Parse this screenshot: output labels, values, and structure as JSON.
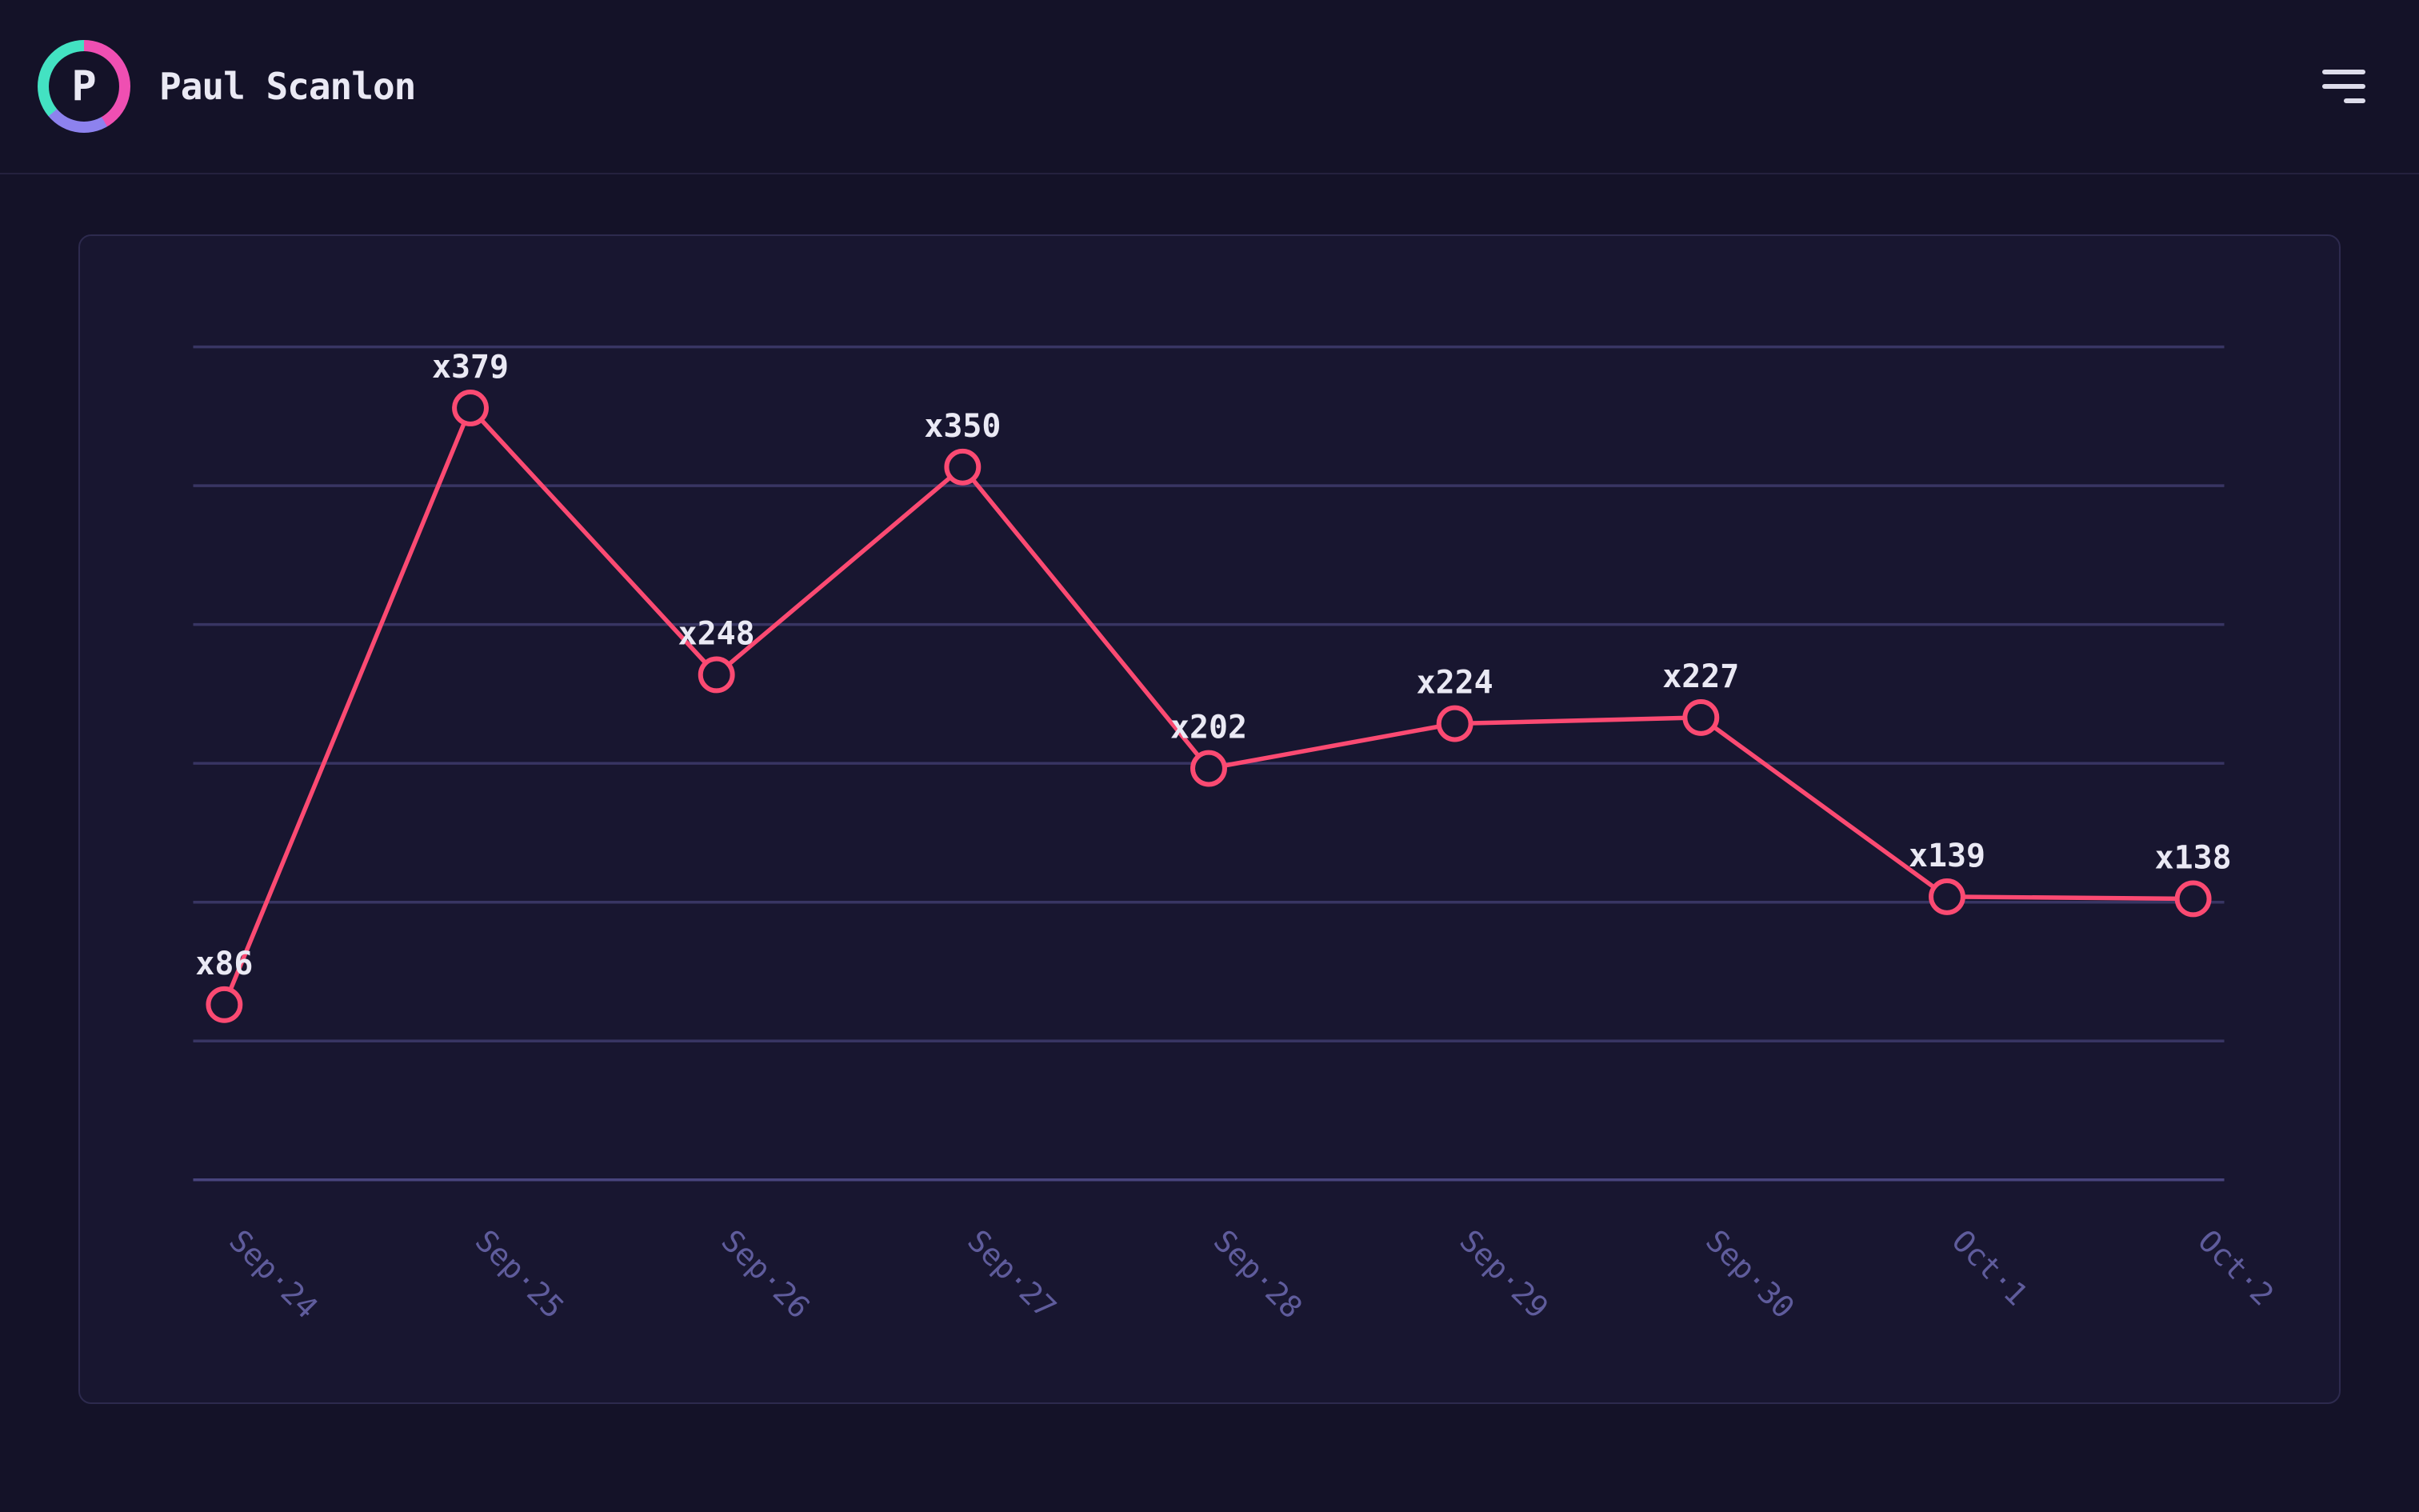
{
  "header": {
    "title": "Paul Scanlon",
    "avatar_initial": "P",
    "menu_icon": "hamburger-menu"
  },
  "theme": {
    "page_bg": "#141228",
    "card_bg": "#181630",
    "card_border": "#2d2a4e",
    "grid_color": "#383563",
    "axis_color": "#48447d",
    "line_color": "#fb4a72",
    "point_fill": "#181630",
    "label_color": "#eae9f4",
    "tick_color": "#5f5c9c",
    "avatar_ring_pink": "#ef4fb2",
    "avatar_ring_purple": "#8d82ee",
    "avatar_ring_teal": "#43e2c2"
  },
  "chart_data": {
    "type": "line",
    "categories": [
      "Sep·24",
      "Sep·25",
      "Sep·26",
      "Sep·27",
      "Sep·28",
      "Sep·29",
      "Sep·30",
      "Oct·1",
      "Oct·2"
    ],
    "values": [
      86,
      379,
      248,
      350,
      202,
      224,
      227,
      139,
      138
    ],
    "point_labels": [
      "x86",
      "x379",
      "x248",
      "x350",
      "x202",
      "x224",
      "x227",
      "x139",
      "x138"
    ],
    "ylim": [
      0,
      409
    ],
    "gridlines": 7,
    "grid": "horizontal",
    "legend": "none",
    "x_tick_angle_deg": 45
  }
}
